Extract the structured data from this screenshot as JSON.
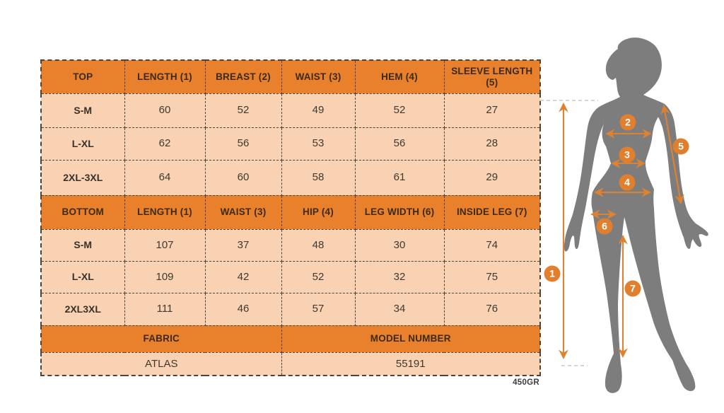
{
  "size_chart": {
    "top_section": {
      "headers": [
        "TOP",
        "LENGTH (1)",
        "BREAST (2)",
        "WAIST (3)",
        "HEM (4)",
        "SLEEVE LENGTH (5)"
      ],
      "rows": [
        {
          "size": "S-M",
          "values": [
            "60",
            "52",
            "49",
            "52",
            "27"
          ]
        },
        {
          "size": "L-XL",
          "values": [
            "62",
            "56",
            "53",
            "56",
            "28"
          ]
        },
        {
          "size": "2XL-3XL",
          "values": [
            "64",
            "60",
            "58",
            "61",
            "29"
          ]
        }
      ]
    },
    "bottom_section": {
      "headers": [
        "BOTTOM",
        "LENGTH (1)",
        "WAIST (3)",
        "HIP (4)",
        "LEG WIDTH (6)",
        "INSIDE LEG (7)"
      ],
      "rows": [
        {
          "size": "S-M",
          "values": [
            "107",
            "37",
            "48",
            "30",
            "74"
          ]
        },
        {
          "size": "L-XL",
          "values": [
            "109",
            "42",
            "52",
            "32",
            "75"
          ]
        },
        {
          "size": "2XL3XL",
          "values": [
            "111",
            "46",
            "57",
            "34",
            "76"
          ]
        }
      ]
    },
    "footer": {
      "fabric_label": "FABRIC",
      "fabric_value": "ATLAS",
      "model_label": "MODEL NUMBER",
      "model_value": "55191"
    },
    "weight_note": "450GR"
  },
  "figure": {
    "badge_numbers": [
      "1",
      "2",
      "3",
      "4",
      "5",
      "6",
      "7"
    ]
  },
  "colors": {
    "header_orange": "#e8802c",
    "cell_peach": "#f8d2b2",
    "table_border": "#4d4439",
    "silhouette_gray": "#7d7d7d",
    "arrow_orange": "#de8231"
  }
}
